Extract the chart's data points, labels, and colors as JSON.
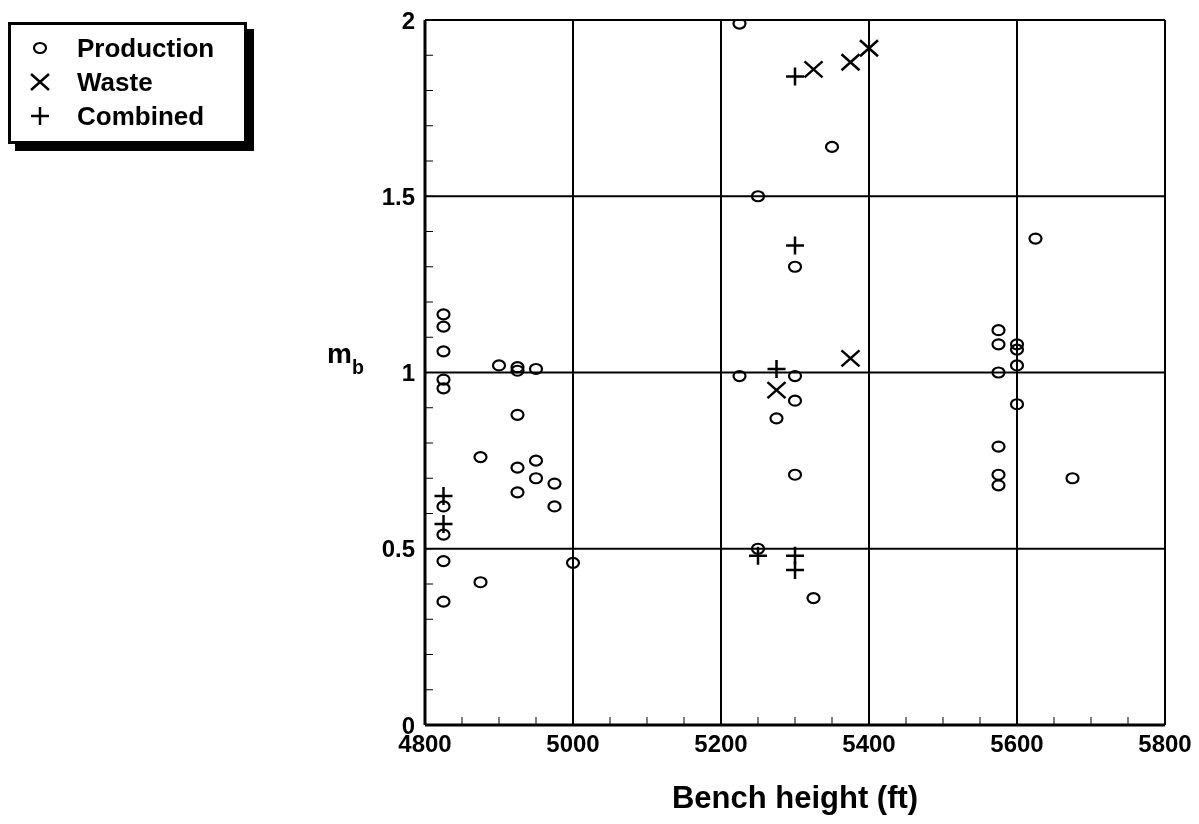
{
  "chart_data": {
    "type": "scatter",
    "xlabel": "Bench height (ft)",
    "ylabel": "m$_{b}$",
    "xlim": [
      4800,
      5800
    ],
    "ylim": [
      0,
      2
    ],
    "xticks": [
      4800,
      {
        "value": 4850,
        "label": null
      },
      {
        "value": 4900,
        "label": null
      },
      {
        "value": 4950,
        "label": null
      },
      5000,
      {
        "value": 5050,
        "label": null
      },
      {
        "value": 5100,
        "label": null
      },
      {
        "value": 5150,
        "label": null
      },
      5200,
      {
        "value": 5250,
        "label": null
      },
      {
        "value": 5300,
        "label": null
      },
      {
        "value": 5350,
        "label": null
      },
      5400,
      {
        "value": 5450,
        "label": null
      },
      {
        "value": 5500,
        "label": null
      },
      {
        "value": 5550,
        "label": null
      },
      5600,
      {
        "value": 5650,
        "label": null
      },
      {
        "value": 5700,
        "label": null
      },
      {
        "value": 5750,
        "label": null
      },
      5800
    ],
    "yticks": [
      0,
      {
        "value": 0.1,
        "label": null
      },
      {
        "value": 0.2,
        "label": null
      },
      {
        "value": 0.3,
        "label": null
      },
      {
        "value": 0.4,
        "label": null
      },
      0.5,
      {
        "value": 0.6,
        "label": null
      },
      {
        "value": 0.7,
        "label": null
      },
      {
        "value": 0.8,
        "label": null
      },
      {
        "value": 0.9,
        "label": null
      },
      1,
      {
        "value": 1.1,
        "label": null
      },
      {
        "value": 1.2,
        "label": null
      },
      {
        "value": 1.3,
        "label": null
      },
      {
        "value": 1.4,
        "label": null
      },
      1.5,
      {
        "value": 1.6,
        "label": null
      },
      {
        "value": 1.7,
        "label": null
      },
      {
        "value": 1.8,
        "label": null
      },
      {
        "value": 1.9,
        "label": null
      },
      2
    ],
    "grid": true,
    "legend": "top left",
    "series": [
      {
        "name": "Production",
        "color": "#000000",
        "marker": "circle",
        "x": [
          4825,
          4825,
          4825,
          4825,
          4825,
          4825,
          4825,
          4825,
          4825,
          4875,
          4875,
          4900,
          4925,
          4925,
          4925,
          4925,
          4925,
          4950,
          4950,
          4950,
          4975,
          4975,
          5000,
          5225,
          5250,
          5300,
          5350,
          5225,
          5300,
          5300,
          5275,
          5300,
          5250,
          5325,
          5625,
          5575,
          5575,
          5575,
          5575,
          5575,
          5575,
          5600,
          5600,
          5600,
          5600,
          5675
        ],
        "values": [
          1.165,
          1.13,
          1.06,
          0.98,
          0.955,
          0.62,
          0.54,
          0.465,
          0.35,
          0.76,
          0.405,
          1.02,
          1.015,
          1.005,
          0.88,
          0.73,
          0.66,
          1.01,
          0.75,
          0.7,
          0.685,
          0.62,
          0.46,
          1.99,
          1.5,
          1.3,
          1.64,
          0.99,
          0.99,
          0.92,
          0.87,
          0.71,
          0.5,
          0.36,
          1.38,
          1.12,
          1.08,
          1.0,
          0.79,
          0.71,
          0.68,
          1.08,
          1.065,
          1.02,
          0.91,
          0.7
        ]
      },
      {
        "name": "Waste",
        "color": "#000000",
        "marker": "cross",
        "x": [
          5325,
          5375,
          5400,
          5275,
          5375
        ],
        "values": [
          1.86,
          1.88,
          1.92,
          0.95,
          1.04
        ]
      },
      {
        "name": "Combined",
        "color": "#000000",
        "marker": "plus",
        "x": [
          5300,
          5300,
          5275,
          5250,
          5300,
          5300,
          4825,
          4825
        ],
        "values": [
          1.84,
          1.36,
          1.01,
          0.48,
          0.48,
          0.44,
          0.65,
          0.57
        ]
      }
    ]
  }
}
